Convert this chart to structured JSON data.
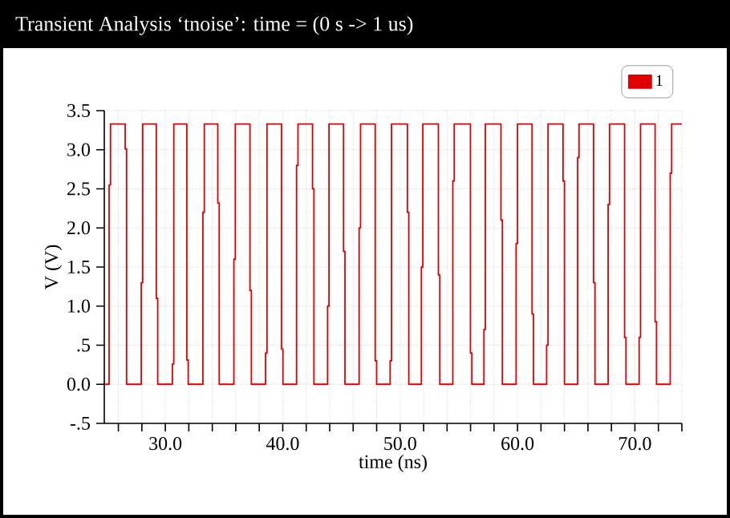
{
  "chart_data": {
    "type": "step",
    "title": "Transient Analysis ‘tnoise’: time = (0 s -> 1 us)",
    "xlabel": "time (ns)",
    "ylabel": "V (V)",
    "xlim": [
      24.8,
      74.0
    ],
    "ylim": [
      -0.5,
      3.5
    ],
    "xticks": [
      {
        "value": 26,
        "label": null
      },
      {
        "value": 28,
        "label": null
      },
      {
        "value": 30,
        "label": "30.0"
      },
      {
        "value": 32,
        "label": null
      },
      {
        "value": 34,
        "label": null
      },
      {
        "value": 36,
        "label": null
      },
      {
        "value": 38,
        "label": null
      },
      {
        "value": 40,
        "label": "40.0"
      },
      {
        "value": 42,
        "label": null
      },
      {
        "value": 44,
        "label": null
      },
      {
        "value": 46,
        "label": null
      },
      {
        "value": 48,
        "label": null
      },
      {
        "value": 50,
        "label": "50.0"
      },
      {
        "value": 52,
        "label": null
      },
      {
        "value": 54,
        "label": null
      },
      {
        "value": 56,
        "label": null
      },
      {
        "value": 58,
        "label": null
      },
      {
        "value": 60,
        "label": "60.0"
      },
      {
        "value": 62,
        "label": null
      },
      {
        "value": 64,
        "label": null
      },
      {
        "value": 66,
        "label": null
      },
      {
        "value": 68,
        "label": null
      },
      {
        "value": 70,
        "label": "70.0"
      },
      {
        "value": 72,
        "label": null
      },
      {
        "value": 74,
        "label": null
      }
    ],
    "yticks": [
      {
        "value": -0.5,
        "label": "-.5"
      },
      {
        "value": 0,
        "label": "0.0"
      },
      {
        "value": 0.5,
        "label": ".5"
      },
      {
        "value": 1,
        "label": "1.0"
      },
      {
        "value": 1.5,
        "label": "1.5"
      },
      {
        "value": 2,
        "label": "2.0"
      },
      {
        "value": 2.5,
        "label": "2.5"
      },
      {
        "value": 3,
        "label": "3.0"
      },
      {
        "value": 3.5,
        "label": "3.5"
      }
    ],
    "grid": true,
    "legend": "top right",
    "series": [
      {
        "name": "1",
        "color": "#e00000",
        "x": [
          24.8,
          25.21,
          25.33,
          26.58,
          26.7,
          27.95,
          28.07,
          29.23,
          29.35,
          30.6,
          30.72,
          31.83,
          31.95,
          33.2,
          33.32,
          34.47,
          34.59,
          35.84,
          35.96,
          37.21,
          37.33,
          38.54,
          38.66,
          39.9,
          40.02,
          41.18,
          41.3,
          42.54,
          42.66,
          43.82,
          43.94,
          45.18,
          45.3,
          46.51,
          46.63,
          47.88,
          48.0,
          49.15,
          49.27,
          50.62,
          50.74,
          51.81,
          51.93,
          53.26,
          53.38,
          54.49,
          54.61,
          55.99,
          56.11,
          57.14,
          57.26,
          58.59,
          58.71,
          59.88,
          60.0,
          61.24,
          61.36,
          62.48,
          62.6,
          63.88,
          64.0,
          65.12,
          65.24,
          66.48,
          66.6,
          67.72,
          67.84,
          69.12,
          69.24,
          70.36,
          70.48,
          71.72,
          71.84,
          73.01,
          73.13,
          74.0
        ],
        "values": [
          0.0,
          2.55,
          3.33,
          3.01,
          0.0,
          1.3,
          3.33,
          1.1,
          0.0,
          0.26,
          3.33,
          0.31,
          0.0,
          2.2,
          3.33,
          2.32,
          0.0,
          1.6,
          3.33,
          1.2,
          0.0,
          0.4,
          3.33,
          0.45,
          0.0,
          2.8,
          3.33,
          2.5,
          0.0,
          1.0,
          3.33,
          1.7,
          0.0,
          2.0,
          3.33,
          0.3,
          0.0,
          0.3,
          3.33,
          2.2,
          0.0,
          1.5,
          3.33,
          1.4,
          0.0,
          2.6,
          3.33,
          0.4,
          0.0,
          0.7,
          3.33,
          2.1,
          0.0,
          1.8,
          3.33,
          0.9,
          0.0,
          0.5,
          3.33,
          2.6,
          0.0,
          2.9,
          3.33,
          1.3,
          0.0,
          2.3,
          3.33,
          0.6,
          0.0,
          0.6,
          3.33,
          0.8,
          0.0,
          2.7,
          3.33,
          3.33
        ]
      }
    ]
  }
}
